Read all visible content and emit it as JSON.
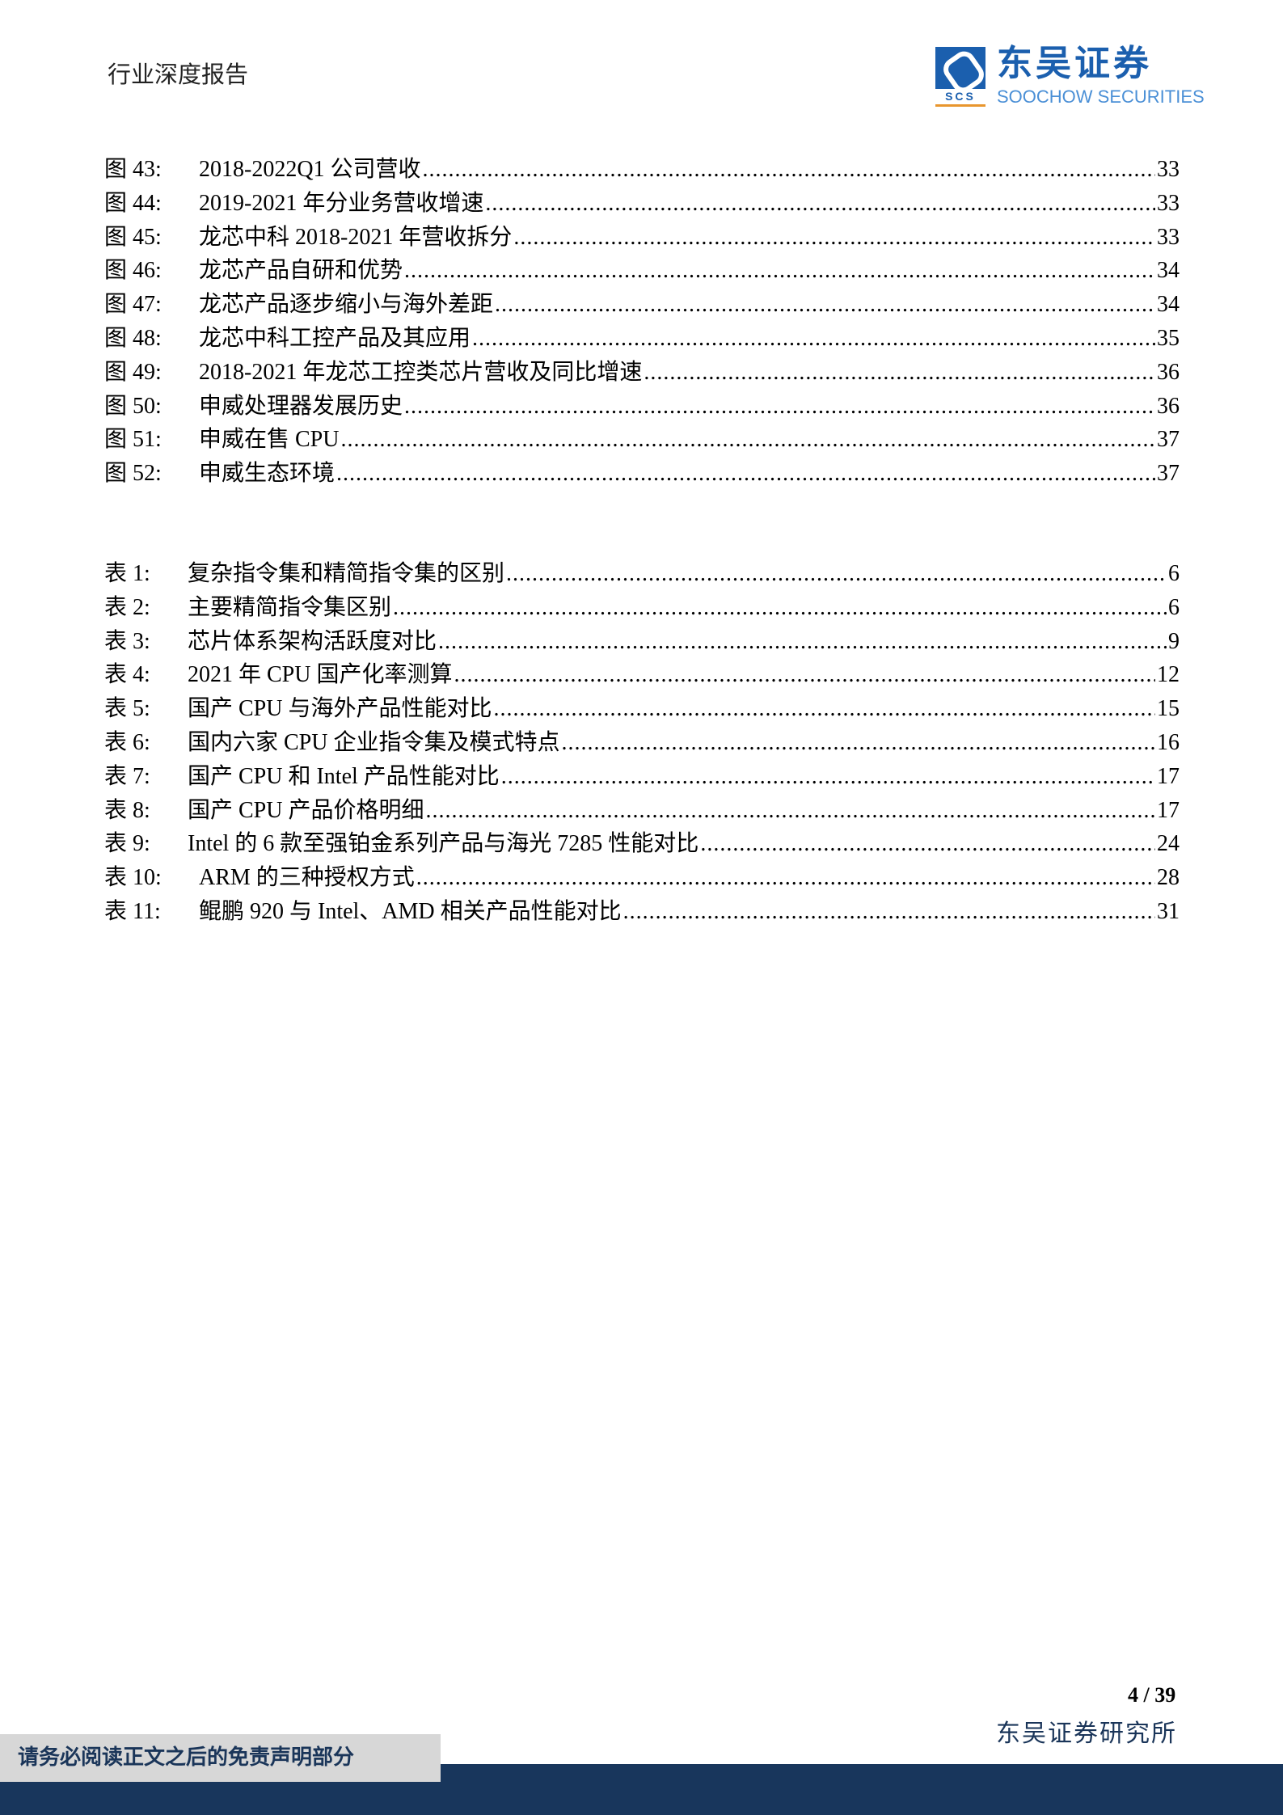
{
  "header": {
    "title": "行业深度报告",
    "logo_cn": "东吴证券",
    "logo_en": "SOOCHOW SECURITIES",
    "logo_mark": "SCS"
  },
  "figures": [
    {
      "label": "图 43:",
      "title": "2018-2022Q1 公司营收",
      "page": "33"
    },
    {
      "label": "图 44:",
      "title": "2019-2021 年分业务营收增速",
      "page": "33"
    },
    {
      "label": "图 45:",
      "title": "龙芯中科 2018-2021 年营收拆分",
      "page": "33"
    },
    {
      "label": "图 46:",
      "title": "龙芯产品自研和优势",
      "page": "34"
    },
    {
      "label": "图 47:",
      "title": "龙芯产品逐步缩小与海外差距",
      "page": "34"
    },
    {
      "label": "图 48:",
      "title": "龙芯中科工控产品及其应用",
      "page": "35"
    },
    {
      "label": "图 49:",
      "title": "2018-2021 年龙芯工控类芯片营收及同比增速",
      "page": "36"
    },
    {
      "label": "图 50:",
      "title": "申威处理器发展历史",
      "page": "36"
    },
    {
      "label": "图 51:",
      "title": "申威在售 CPU",
      "page": "37"
    },
    {
      "label": "图 52:",
      "title": "申威生态环境",
      "page": "37"
    }
  ],
  "tables": [
    {
      "label": "表 1:",
      "title": "复杂指令集和精简指令集的区别",
      "page": "6"
    },
    {
      "label": "表 2:",
      "title": "主要精简指令集区别",
      "page": "6"
    },
    {
      "label": "表 3:",
      "title": "芯片体系架构活跃度对比",
      "page": "9"
    },
    {
      "label": "表 4:",
      "title": "2021 年 CPU 国产化率测算",
      "page": "12"
    },
    {
      "label": "表 5:",
      "title": "国产 CPU 与海外产品性能对比",
      "page": "15"
    },
    {
      "label": "表 6:",
      "title": "国内六家 CPU 企业指令集及模式特点",
      "page": "16"
    },
    {
      "label": "表 7:",
      "title": "国产 CPU 和 Intel 产品性能对比",
      "page": "17"
    },
    {
      "label": "表 8:",
      "title": "国产 CPU 产品价格明细",
      "page": "17"
    },
    {
      "label": "表 9:",
      "title": "Intel 的 6 款至强铂金系列产品与海光 7285 性能对比",
      "page": "24"
    },
    {
      "label": "表 10:",
      "title": "ARM 的三种授权方式",
      "page": "28"
    },
    {
      "label": "表 11:",
      "title": "鲲鹏 920 与 Intel、AMD 相关产品性能对比",
      "page": "31"
    }
  ],
  "footer": {
    "page": "4 / 39",
    "institute": "东吴证券研究所",
    "disclaimer": "请务必阅读正文之后的免责声明部分"
  },
  "colors": {
    "brand": "#1b5fae",
    "navy": "#18365c",
    "gray": "#d7d7d7"
  }
}
